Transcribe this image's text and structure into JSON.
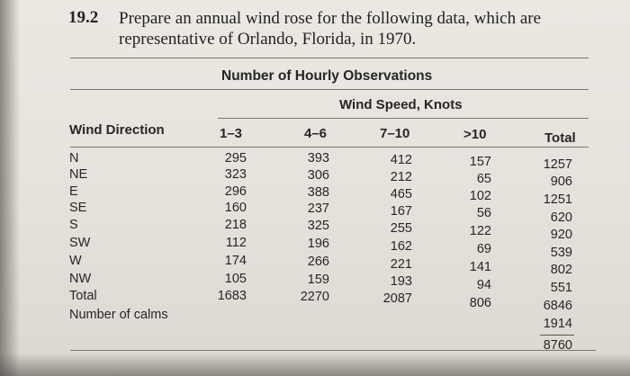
{
  "problem": {
    "number": "19.2",
    "text": "Prepare an annual wind rose for the following data, which are representative of Orlando, Florida, in 1970."
  },
  "table": {
    "title": "Number of Hourly Observations",
    "subtitle": "Wind Speed, Knots",
    "headers": {
      "direction": "Wind Direction",
      "col1": "1–3",
      "col2": "4–6",
      "col3": "7–10",
      "col4": ">10",
      "total": "Total"
    },
    "rows": [
      {
        "dir": "N",
        "v1": "295",
        "v2": "393",
        "v3": "412",
        "v4": "157",
        "total": "1257"
      },
      {
        "dir": "NE",
        "v1": "323",
        "v2": "306",
        "v3": "212",
        "v4": "65",
        "total": "906"
      },
      {
        "dir": "E",
        "v1": "296",
        "v2": "388",
        "v3": "465",
        "v4": "102",
        "total": "1251"
      },
      {
        "dir": "SE",
        "v1": "160",
        "v2": "237",
        "v3": "167",
        "v4": "56",
        "total": "620"
      },
      {
        "dir": "S",
        "v1": "218",
        "v2": "325",
        "v3": "255",
        "v4": "122",
        "total": "920"
      },
      {
        "dir": "SW",
        "v1": "112",
        "v2": "196",
        "v3": "162",
        "v4": "69",
        "total": "539"
      },
      {
        "dir": "W",
        "v1": "174",
        "v2": "266",
        "v3": "221",
        "v4": "141",
        "total": "802"
      },
      {
        "dir": "NW",
        "v1": "105",
        "v2": "159",
        "v3": "193",
        "v4": "94",
        "total": "551"
      }
    ],
    "total_row": {
      "label": "Total",
      "v1": "1683",
      "v2": "2270",
      "v3": "2087",
      "v4": "806",
      "total": "6846"
    },
    "calms": {
      "label": "Number of calms",
      "total": "1914"
    },
    "grand_total": "8760"
  }
}
